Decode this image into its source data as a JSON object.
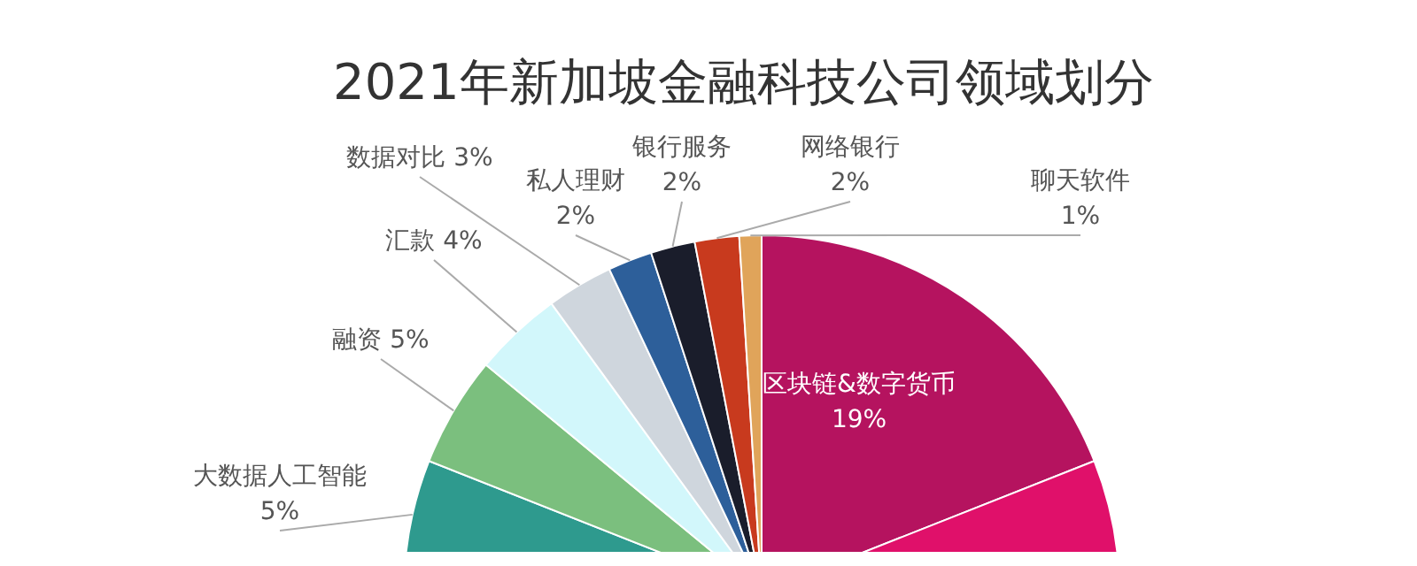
{
  "chart_data": {
    "type": "pie",
    "title": "2021年新加坡金融科技公司领域划分",
    "categories": [
      "区块链&数字货币",
      null,
      "大数据人工智能",
      "融资",
      "汇款",
      "数据对比",
      "私人理财",
      "银行服务",
      "网络银行",
      "聊天软件"
    ],
    "values": [
      19,
      57,
      5,
      5,
      4,
      3,
      2,
      2,
      2,
      1
    ],
    "value_labels": [
      "19%",
      null,
      "5%",
      "5%",
      "4%",
      "3%",
      "2%",
      "2%",
      "2%",
      "1%"
    ],
    "colors": [
      "#b5135f",
      "#e0106a",
      "#2e9a8e",
      "#7bbf7e",
      "#d2f7fb",
      "#cfd6dd",
      "#2d5f9a",
      "#1a1d2b",
      "#c83a1e",
      "#e0a45a"
    ],
    "legend": false
  }
}
